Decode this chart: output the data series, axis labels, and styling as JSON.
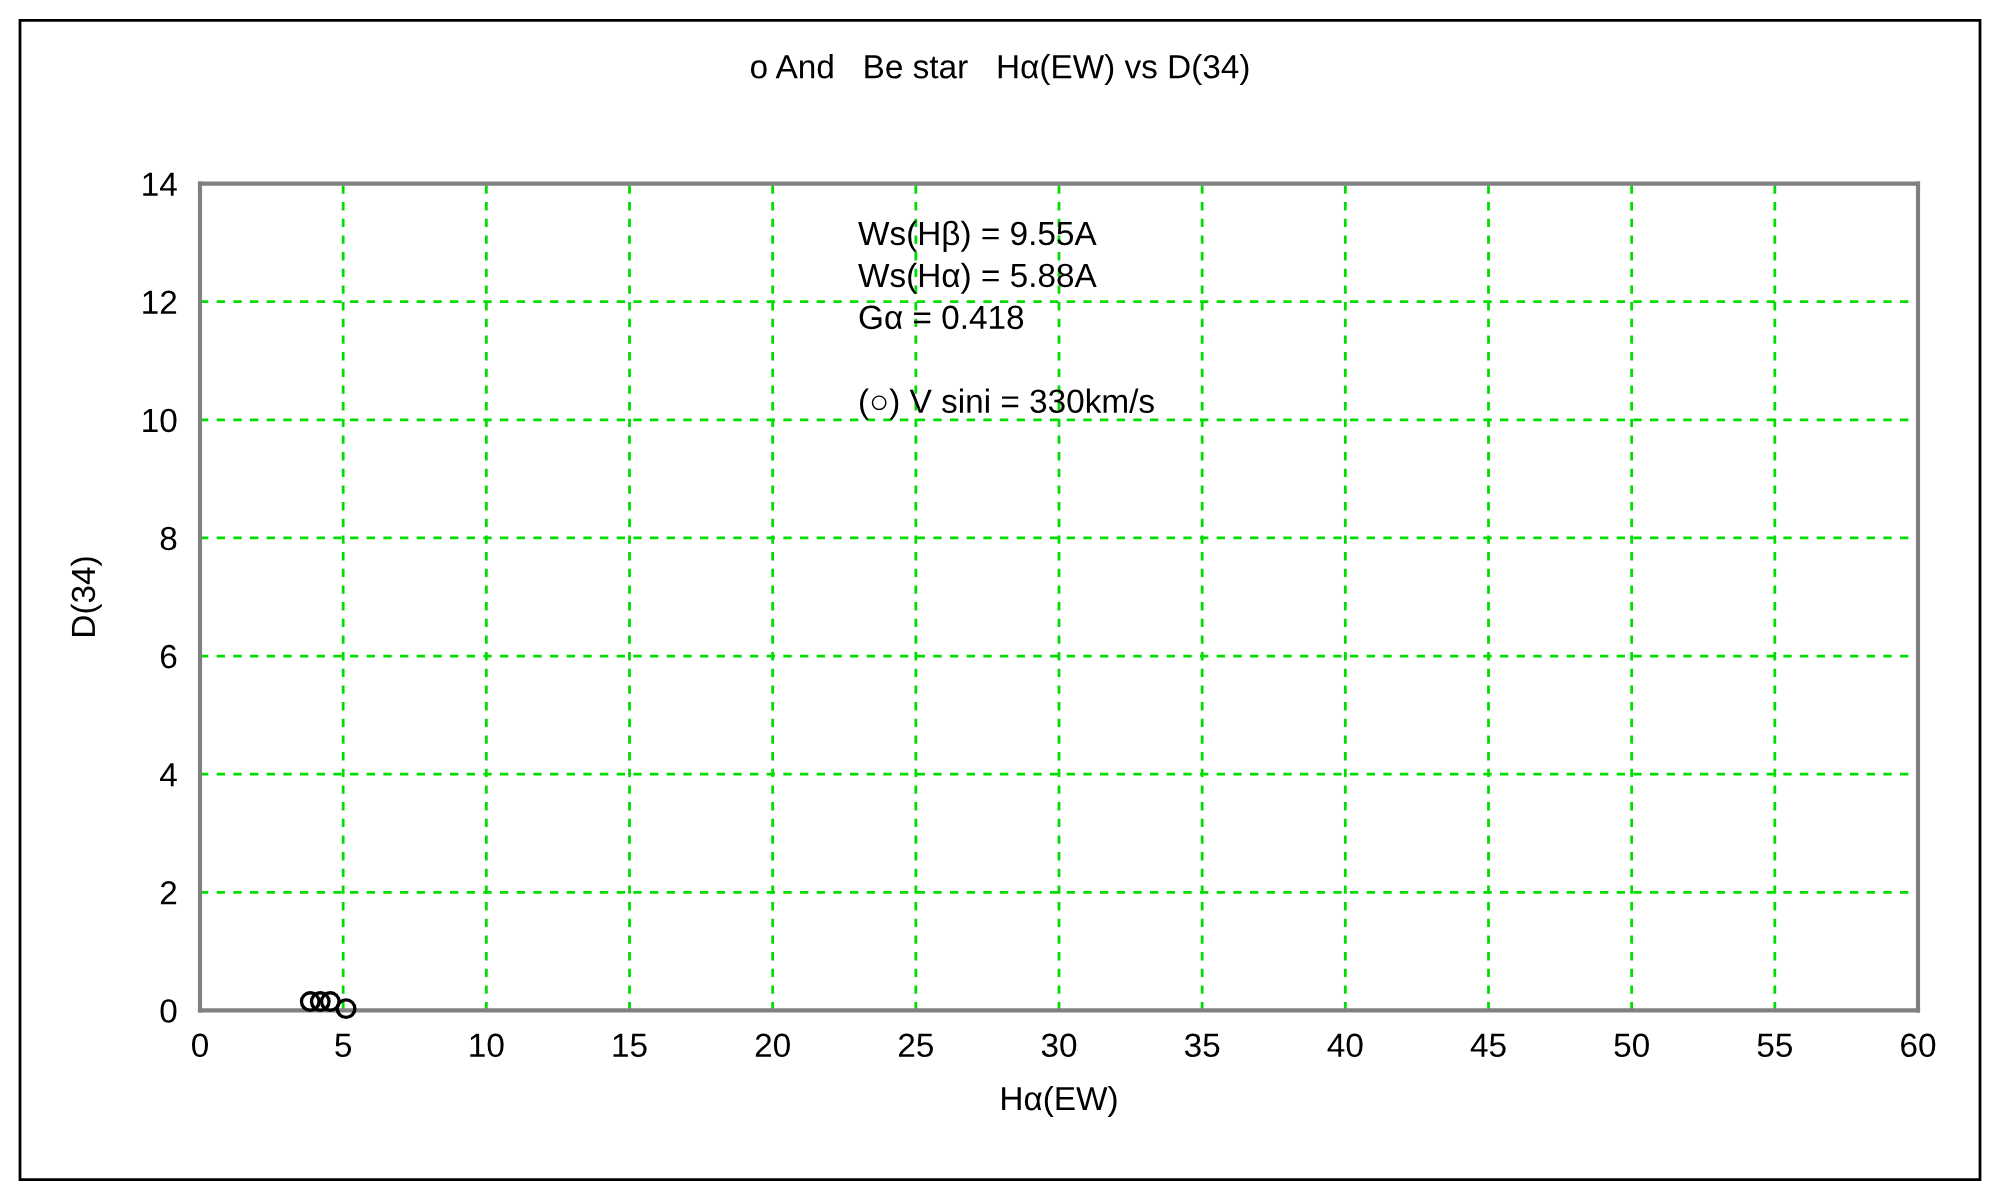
{
  "chart_data": {
    "type": "scatter",
    "title": "ο And   Be star   Hα(EW) vs D(34)",
    "xlabel": "Hα(EW)",
    "ylabel": "D(34)",
    "annotations": [
      "Ws(Hβ) = 9.55A\nWs(Hα) = 5.88A\nGα = 0.418\n\n(○) V sini = 330km/s"
    ],
    "x": [
      3.85,
      4.2,
      4.55,
      5.1
    ],
    "series": [
      {
        "color": "#000000",
        "values": [
          0.15,
          0.15,
          0.15,
          0.03
        ]
      }
    ],
    "marker": "circle",
    "grid": true,
    "xlim": [
      0,
      60
    ],
    "xticks": [
      0,
      5,
      10,
      15,
      20,
      25,
      30,
      35,
      40,
      45,
      50,
      55,
      60
    ],
    "ylim": [
      0,
      14
    ],
    "yticks": [
      0,
      2,
      4,
      6,
      8,
      10,
      12,
      14
    ]
  }
}
